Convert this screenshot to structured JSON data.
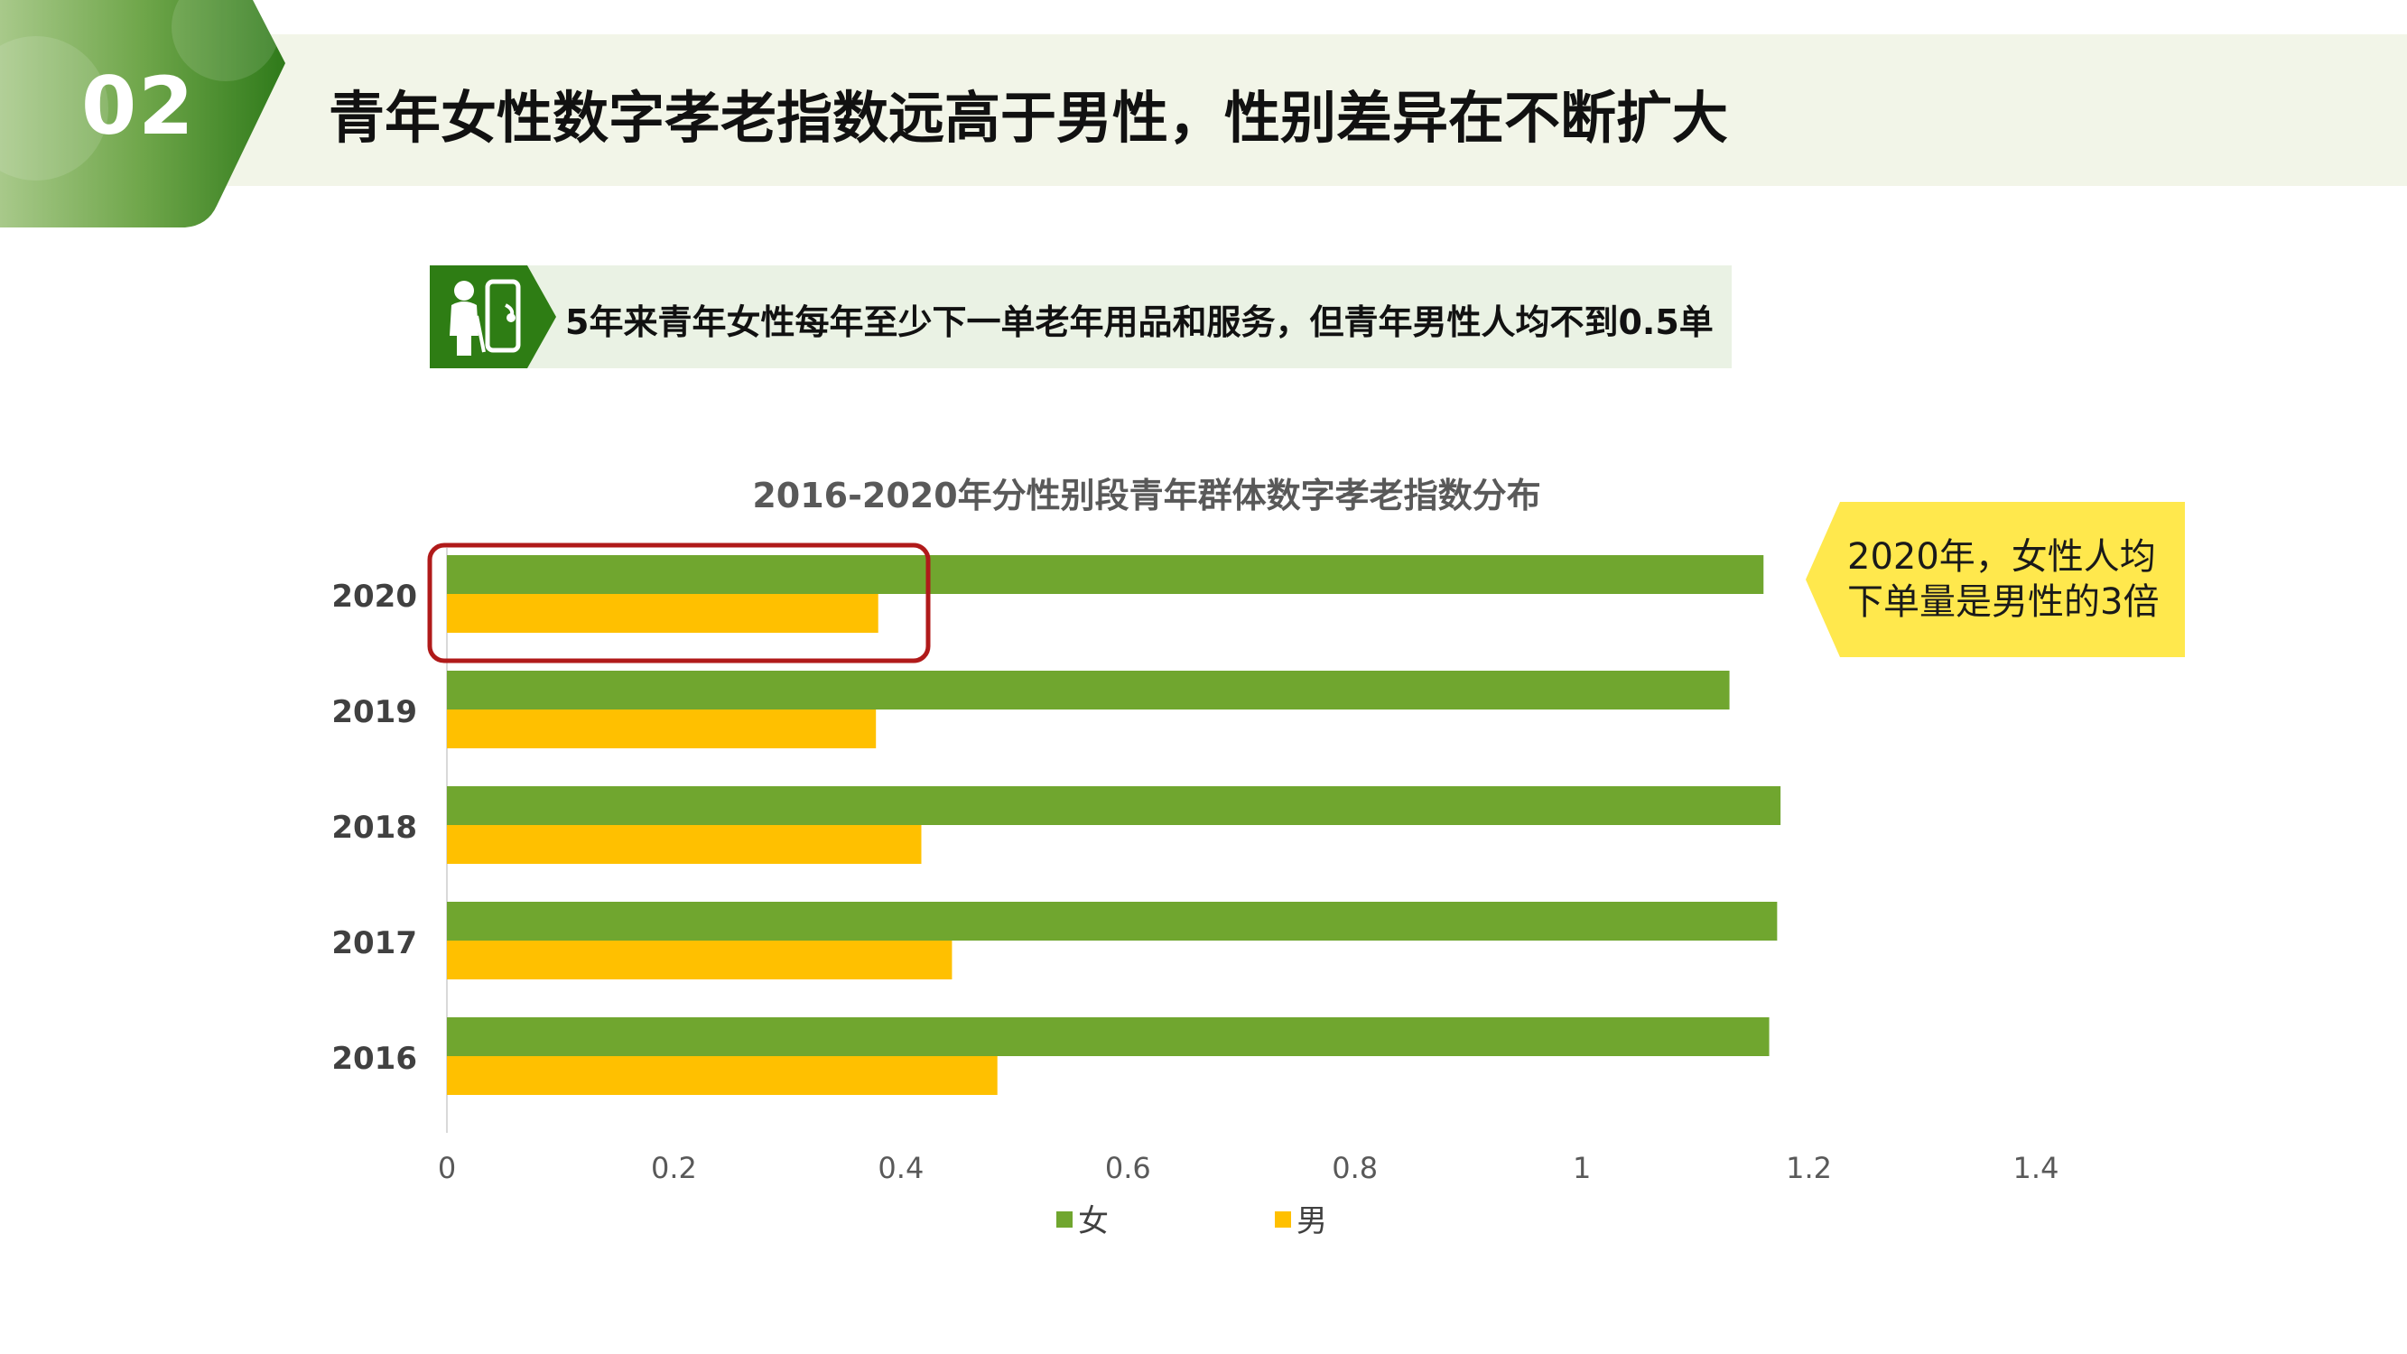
{
  "header": {
    "number": "02",
    "title": "青年女性数字孝老指数远高于男性，性别差异在不断扩大"
  },
  "subtitle": {
    "icon": "elderly-person-phone-icon",
    "text": "5年来青年女性每年至少下一单老年用品和服务，但青年男性人均不到0.5单"
  },
  "callout": {
    "line1": "2020年，女性人均",
    "line2": "下单量是男性的3倍"
  },
  "colors": {
    "female": "#70a62f",
    "male": "#ffc000",
    "highlight_box": "#b01a1a",
    "callout_bg": "#ffe84d",
    "header_green": "#3d8a1e"
  },
  "chart_data": {
    "type": "bar",
    "orientation": "horizontal",
    "title": "2016-2020年分性别段青年群体数字孝老指数分布",
    "categories": [
      "2020",
      "2019",
      "2018",
      "2017",
      "2016"
    ],
    "series": [
      {
        "name": "女",
        "values": [
          1.16,
          1.13,
          1.175,
          1.172,
          1.165
        ]
      },
      {
        "name": "男",
        "values": [
          0.38,
          0.378,
          0.418,
          0.445,
          0.485
        ]
      }
    ],
    "xlim": [
      0,
      1.4
    ],
    "xticks": [
      "0",
      "0.2",
      "0.4",
      "0.6",
      "0.8",
      "1",
      "1.2",
      "1.4"
    ],
    "legend_position": "bottom",
    "grid": false
  }
}
